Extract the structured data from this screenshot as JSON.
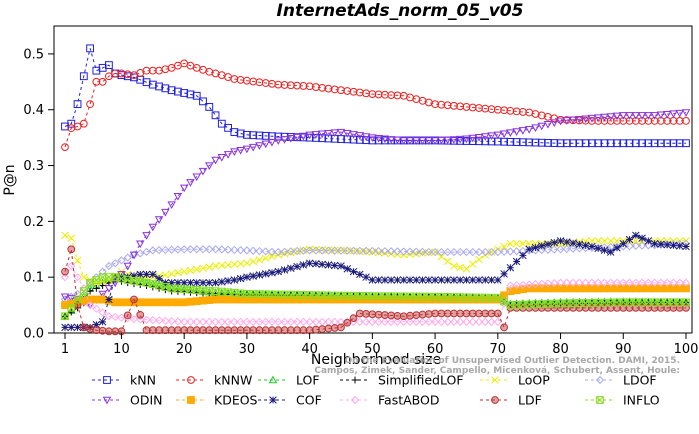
{
  "chart_data": {
    "type": "line",
    "title": "InternetAds_norm_05_v05",
    "xlabel": "Neighborhood size",
    "ylabel": "P@n",
    "xlim": [
      1,
      100
    ],
    "ylim": [
      0,
      0.55
    ],
    "xticks": [
      1,
      10,
      20,
      30,
      40,
      50,
      60,
      70,
      80,
      90,
      100
    ],
    "yticks": [
      0.0,
      0.1,
      0.2,
      0.3,
      0.4,
      0.5
    ],
    "ytick_labels": [
      "0.0",
      "0.1",
      "0.2",
      "0.3",
      "0.4",
      "0.5"
    ],
    "grid": false,
    "legend_position": "bottom",
    "watermark": [
      "Campos, Zimek, Sander, Campello, Micenková, Schubert, Assent, Houle:",
      "On the Evaluation of Unsupervised Outlier Detection. DAMI, 2015."
    ],
    "series": [
      {
        "name": "kNN",
        "color": "#2020dd",
        "marker": "square",
        "dash": "3,3",
        "points": [
          [
            1,
            0.37
          ],
          [
            2,
            0.375
          ],
          [
            3,
            0.41
          ],
          [
            4,
            0.46
          ],
          [
            5,
            0.51
          ],
          [
            6,
            0.47
          ],
          [
            7,
            0.475
          ],
          [
            8,
            0.48
          ],
          [
            9,
            0.465
          ],
          [
            10,
            0.462
          ],
          [
            12,
            0.458
          ],
          [
            15,
            0.445
          ],
          [
            18,
            0.435
          ],
          [
            20,
            0.43
          ],
          [
            22,
            0.425
          ],
          [
            24,
            0.405
          ],
          [
            26,
            0.375
          ],
          [
            28,
            0.36
          ],
          [
            30,
            0.355
          ],
          [
            35,
            0.352
          ],
          [
            40,
            0.35
          ],
          [
            50,
            0.345
          ],
          [
            60,
            0.345
          ],
          [
            70,
            0.343
          ],
          [
            80,
            0.34
          ],
          [
            90,
            0.34
          ],
          [
            100,
            0.34
          ]
        ]
      },
      {
        "name": "kNNW",
        "color": "#ee2020",
        "marker": "circle",
        "dash": "3,3",
        "points": [
          [
            1,
            0.333
          ],
          [
            2,
            0.367
          ],
          [
            3,
            0.37
          ],
          [
            4,
            0.375
          ],
          [
            5,
            0.41
          ],
          [
            6,
            0.45
          ],
          [
            7,
            0.45
          ],
          [
            8,
            0.46
          ],
          [
            9,
            0.465
          ],
          [
            10,
            0.465
          ],
          [
            12,
            0.462
          ],
          [
            14,
            0.47
          ],
          [
            16,
            0.47
          ],
          [
            18,
            0.475
          ],
          [
            20,
            0.483
          ],
          [
            22,
            0.475
          ],
          [
            24,
            0.468
          ],
          [
            26,
            0.462
          ],
          [
            28,
            0.455
          ],
          [
            30,
            0.452
          ],
          [
            35,
            0.445
          ],
          [
            40,
            0.442
          ],
          [
            45,
            0.435
          ],
          [
            50,
            0.428
          ],
          [
            55,
            0.425
          ],
          [
            60,
            0.41
          ],
          [
            65,
            0.405
          ],
          [
            70,
            0.4
          ],
          [
            75,
            0.395
          ],
          [
            80,
            0.382
          ],
          [
            85,
            0.38
          ],
          [
            90,
            0.38
          ],
          [
            100,
            0.38
          ]
        ]
      },
      {
        "name": "LOF",
        "color": "#22cc22",
        "marker": "triangle",
        "dash": "3,3",
        "points": [
          [
            1,
            0.03
          ],
          [
            3,
            0.05
          ],
          [
            5,
            0.08
          ],
          [
            7,
            0.09
          ],
          [
            9,
            0.1
          ],
          [
            11,
            0.1
          ],
          [
            14,
            0.09
          ],
          [
            18,
            0.08
          ],
          [
            25,
            0.072
          ],
          [
            30,
            0.07
          ],
          [
            40,
            0.068
          ],
          [
            50,
            0.066
          ],
          [
            60,
            0.065
          ],
          [
            70,
            0.063
          ],
          [
            72,
            0.052
          ],
          [
            80,
            0.055
          ],
          [
            90,
            0.056
          ],
          [
            100,
            0.055
          ]
        ]
      },
      {
        "name": "SimplifiedLOF",
        "color": "#000000",
        "marker": "plus",
        "dash": "3,3",
        "points": [
          [
            1,
            0.03
          ],
          [
            3,
            0.045
          ],
          [
            5,
            0.075
          ],
          [
            7,
            0.085
          ],
          [
            9,
            0.095
          ],
          [
            11,
            0.09
          ],
          [
            14,
            0.085
          ],
          [
            18,
            0.075
          ],
          [
            25,
            0.07
          ],
          [
            30,
            0.068
          ],
          [
            40,
            0.067
          ],
          [
            50,
            0.065
          ],
          [
            60,
            0.064
          ],
          [
            70,
            0.062
          ],
          [
            72,
            0.05
          ],
          [
            80,
            0.052
          ],
          [
            90,
            0.054
          ],
          [
            100,
            0.055
          ]
        ]
      },
      {
        "name": "LoOP",
        "color": "#eeee00",
        "marker": "x",
        "dash": "3,3",
        "points": [
          [
            1,
            0.175
          ],
          [
            2,
            0.17
          ],
          [
            3,
            0.13
          ],
          [
            4,
            0.1
          ],
          [
            6,
            0.09
          ],
          [
            8,
            0.095
          ],
          [
            10,
            0.11
          ],
          [
            12,
            0.1
          ],
          [
            15,
            0.1
          ],
          [
            20,
            0.11
          ],
          [
            25,
            0.12
          ],
          [
            30,
            0.125
          ],
          [
            35,
            0.14
          ],
          [
            40,
            0.15
          ],
          [
            45,
            0.148
          ],
          [
            50,
            0.145
          ],
          [
            55,
            0.14
          ],
          [
            60,
            0.145
          ],
          [
            63,
            0.12
          ],
          [
            65,
            0.115
          ],
          [
            68,
            0.14
          ],
          [
            72,
            0.16
          ],
          [
            80,
            0.16
          ],
          [
            85,
            0.165
          ],
          [
            90,
            0.165
          ],
          [
            95,
            0.165
          ],
          [
            100,
            0.165
          ]
        ]
      },
      {
        "name": "LDOF",
        "color": "#aaaaee",
        "marker": "diamond",
        "dash": "3,3",
        "points": [
          [
            1,
            0.06
          ],
          [
            3,
            0.07
          ],
          [
            5,
            0.09
          ],
          [
            8,
            0.12
          ],
          [
            10,
            0.13
          ],
          [
            12,
            0.14
          ],
          [
            15,
            0.148
          ],
          [
            20,
            0.15
          ],
          [
            25,
            0.15
          ],
          [
            30,
            0.148
          ],
          [
            35,
            0.145
          ],
          [
            40,
            0.148
          ],
          [
            50,
            0.147
          ],
          [
            60,
            0.145
          ],
          [
            70,
            0.145
          ],
          [
            80,
            0.15
          ],
          [
            90,
            0.155
          ],
          [
            100,
            0.16
          ]
        ]
      },
      {
        "name": "ODIN",
        "color": "#8833dd",
        "marker": "triangle-down",
        "dash": "3,3",
        "points": [
          [
            1,
            0.065
          ],
          [
            3,
            0.06
          ],
          [
            5,
            0.05
          ],
          [
            7,
            0.07
          ],
          [
            9,
            0.09
          ],
          [
            11,
            0.12
          ],
          [
            13,
            0.16
          ],
          [
            15,
            0.19
          ],
          [
            18,
            0.23
          ],
          [
            20,
            0.26
          ],
          [
            22,
            0.28
          ],
          [
            25,
            0.31
          ],
          [
            28,
            0.325
          ],
          [
            30,
            0.33
          ],
          [
            35,
            0.345
          ],
          [
            40,
            0.355
          ],
          [
            45,
            0.36
          ],
          [
            50,
            0.35
          ],
          [
            55,
            0.345
          ],
          [
            60,
            0.345
          ],
          [
            65,
            0.348
          ],
          [
            70,
            0.355
          ],
          [
            75,
            0.365
          ],
          [
            80,
            0.38
          ],
          [
            85,
            0.385
          ],
          [
            90,
            0.39
          ],
          [
            95,
            0.39
          ],
          [
            100,
            0.395
          ]
        ]
      },
      {
        "name": "KDEOS",
        "color": "#ffaa00",
        "marker": "square-filled",
        "dash": "3,3",
        "points": [
          [
            1,
            0.05
          ],
          [
            3,
            0.055
          ],
          [
            5,
            0.06
          ],
          [
            7,
            0.06
          ],
          [
            9,
            0.055
          ],
          [
            12,
            0.055
          ],
          [
            15,
            0.055
          ],
          [
            20,
            0.055
          ],
          [
            25,
            0.06
          ],
          [
            30,
            0.06
          ],
          [
            40,
            0.06
          ],
          [
            50,
            0.06
          ],
          [
            60,
            0.06
          ],
          [
            70,
            0.06
          ],
          [
            72,
            0.075
          ],
          [
            75,
            0.08
          ],
          [
            80,
            0.08
          ],
          [
            90,
            0.08
          ],
          [
            100,
            0.08
          ]
        ]
      },
      {
        "name": "COF",
        "color": "#1a1a7a",
        "marker": "star",
        "dash": "3,3",
        "points": [
          [
            1,
            0.01
          ],
          [
            3,
            0.01
          ],
          [
            5,
            0.01
          ],
          [
            7,
            0.02
          ],
          [
            9,
            0.1
          ],
          [
            11,
            0.1
          ],
          [
            13,
            0.105
          ],
          [
            15,
            0.105
          ],
          [
            17,
            0.09
          ],
          [
            20,
            0.09
          ],
          [
            25,
            0.09
          ],
          [
            28,
            0.095
          ],
          [
            30,
            0.1
          ],
          [
            35,
            0.11
          ],
          [
            40,
            0.125
          ],
          [
            45,
            0.12
          ],
          [
            50,
            0.095
          ],
          [
            55,
            0.095
          ],
          [
            60,
            0.095
          ],
          [
            65,
            0.095
          ],
          [
            70,
            0.095
          ],
          [
            75,
            0.15
          ],
          [
            80,
            0.165
          ],
          [
            85,
            0.155
          ],
          [
            88,
            0.145
          ],
          [
            92,
            0.175
          ],
          [
            95,
            0.16
          ],
          [
            100,
            0.155
          ]
        ]
      },
      {
        "name": "FastABOD",
        "color": "#ffaaee",
        "marker": "diamond",
        "dash": "3,3",
        "points": [
          [
            1,
            0.1
          ],
          [
            2,
            0.12
          ],
          [
            3,
            0.1
          ],
          [
            4,
            0.08
          ],
          [
            5,
            0.05
          ],
          [
            8,
            0.03
          ],
          [
            12,
            0.025
          ],
          [
            20,
            0.02
          ],
          [
            30,
            0.02
          ],
          [
            40,
            0.02
          ],
          [
            50,
            0.02
          ],
          [
            60,
            0.02
          ],
          [
            70,
            0.02
          ],
          [
            72,
            0.085
          ],
          [
            80,
            0.09
          ],
          [
            90,
            0.09
          ],
          [
            100,
            0.09
          ]
        ]
      },
      {
        "name": "LDF",
        "color": "#bb3333",
        "marker": "circle-dot",
        "dash": "3,3",
        "points": [
          [
            1,
            0.11
          ],
          [
            2,
            0.15
          ],
          [
            3,
            0.05
          ],
          [
            4,
            0.01
          ],
          [
            6,
            0.005
          ],
          [
            8,
            0.003
          ],
          [
            10,
            0.003
          ],
          [
            12,
            0.06
          ],
          [
            14,
            0.005
          ],
          [
            20,
            0.005
          ],
          [
            30,
            0.005
          ],
          [
            40,
            0.005
          ],
          [
            45,
            0.01
          ],
          [
            48,
            0.035
          ],
          [
            55,
            0.03
          ],
          [
            60,
            0.035
          ],
          [
            65,
            0.035
          ],
          [
            70,
            0.035
          ],
          [
            71,
            0.01
          ],
          [
            72,
            0.045
          ],
          [
            80,
            0.045
          ],
          [
            90,
            0.045
          ],
          [
            100,
            0.045
          ]
        ]
      },
      {
        "name": "INFLO",
        "color": "#88dd22",
        "marker": "x-box",
        "dash": "3,3",
        "points": [
          [
            1,
            0.03
          ],
          [
            3,
            0.06
          ],
          [
            5,
            0.09
          ],
          [
            7,
            0.1
          ],
          [
            9,
            0.1
          ],
          [
            11,
            0.095
          ],
          [
            14,
            0.09
          ],
          [
            18,
            0.08
          ],
          [
            25,
            0.075
          ],
          [
            30,
            0.07
          ],
          [
            40,
            0.068
          ],
          [
            50,
            0.066
          ],
          [
            60,
            0.065
          ],
          [
            70,
            0.063
          ],
          [
            72,
            0.05
          ],
          [
            80,
            0.053
          ],
          [
            90,
            0.055
          ],
          [
            100,
            0.055
          ]
        ]
      }
    ]
  }
}
